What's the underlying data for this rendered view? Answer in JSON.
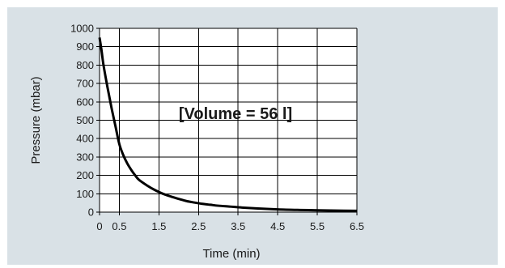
{
  "chart_data": {
    "type": "line",
    "title": "",
    "xlabel": "Time (min)",
    "ylabel": "Pressure (mbar)",
    "annotation": "[Volume = 56 l]",
    "xlim": [
      0,
      6.5
    ],
    "ylim": [
      0,
      1000
    ],
    "xticks": [
      0,
      0.5,
      1.5,
      2.5,
      3.5,
      4.5,
      5.5,
      6.5
    ],
    "xtick_labels": [
      "0",
      "0.5",
      "1.5",
      "2.5",
      "3.5",
      "4.5",
      "5.5",
      "6.5"
    ],
    "yticks": [
      0,
      100,
      200,
      300,
      400,
      500,
      600,
      700,
      800,
      900,
      1000
    ],
    "ytick_labels": [
      "0",
      "100",
      "200",
      "300",
      "400",
      "500",
      "600",
      "700",
      "800",
      "900",
      "1000"
    ],
    "grid": true,
    "series": [
      {
        "name": "",
        "x": [
          0,
          0.05,
          0.1,
          0.2,
          0.3,
          0.4,
          0.5,
          0.6,
          0.7,
          0.8,
          0.9,
          1.0,
          1.2,
          1.4,
          1.6,
          1.8,
          2.0,
          2.2,
          2.4,
          2.6,
          2.8,
          3.0,
          3.3,
          3.6,
          4.0,
          4.5,
          5.0,
          5.5,
          6.0,
          6.5
        ],
        "y": [
          950,
          880,
          800,
          680,
          570,
          470,
          370,
          310,
          265,
          230,
          200,
          175,
          145,
          120,
          100,
          85,
          72,
          60,
          52,
          45,
          40,
          35,
          30,
          25,
          20,
          15,
          12,
          10,
          8,
          7
        ]
      }
    ],
    "colors": {
      "background": "#d9e1e6",
      "plot_background": "#ffffff",
      "grid": "#000000",
      "line": "#000000"
    }
  }
}
